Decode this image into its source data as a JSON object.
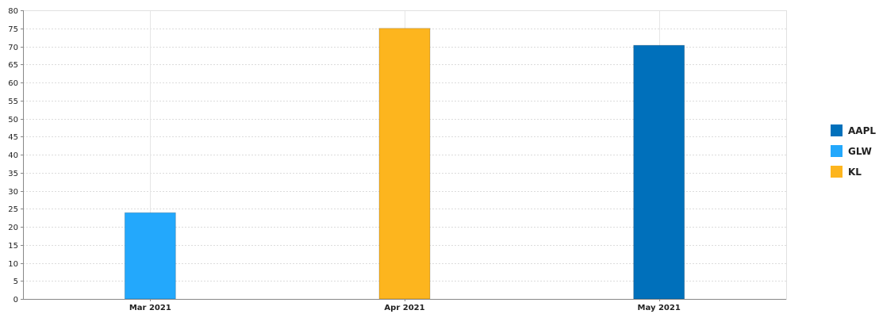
{
  "chart_data": {
    "type": "bar",
    "categories": [
      "Mar 2021",
      "Apr 2021",
      "May 2021"
    ],
    "series": [
      {
        "name": "AAPL",
        "color": "#0070bb",
        "values": [
          null,
          null,
          70.3
        ]
      },
      {
        "name": "GLW",
        "color": "#23a8fc",
        "values": [
          23.9,
          null,
          null
        ]
      },
      {
        "name": "KL",
        "color": "#fdb51e",
        "values": [
          null,
          75.0,
          null
        ]
      }
    ],
    "yticks": [
      0,
      5,
      10,
      15,
      20,
      25,
      30,
      35,
      40,
      45,
      50,
      55,
      60,
      65,
      70,
      75,
      80
    ],
    "ylim": [
      0,
      80
    ],
    "grid": true,
    "legend_position": "right"
  }
}
